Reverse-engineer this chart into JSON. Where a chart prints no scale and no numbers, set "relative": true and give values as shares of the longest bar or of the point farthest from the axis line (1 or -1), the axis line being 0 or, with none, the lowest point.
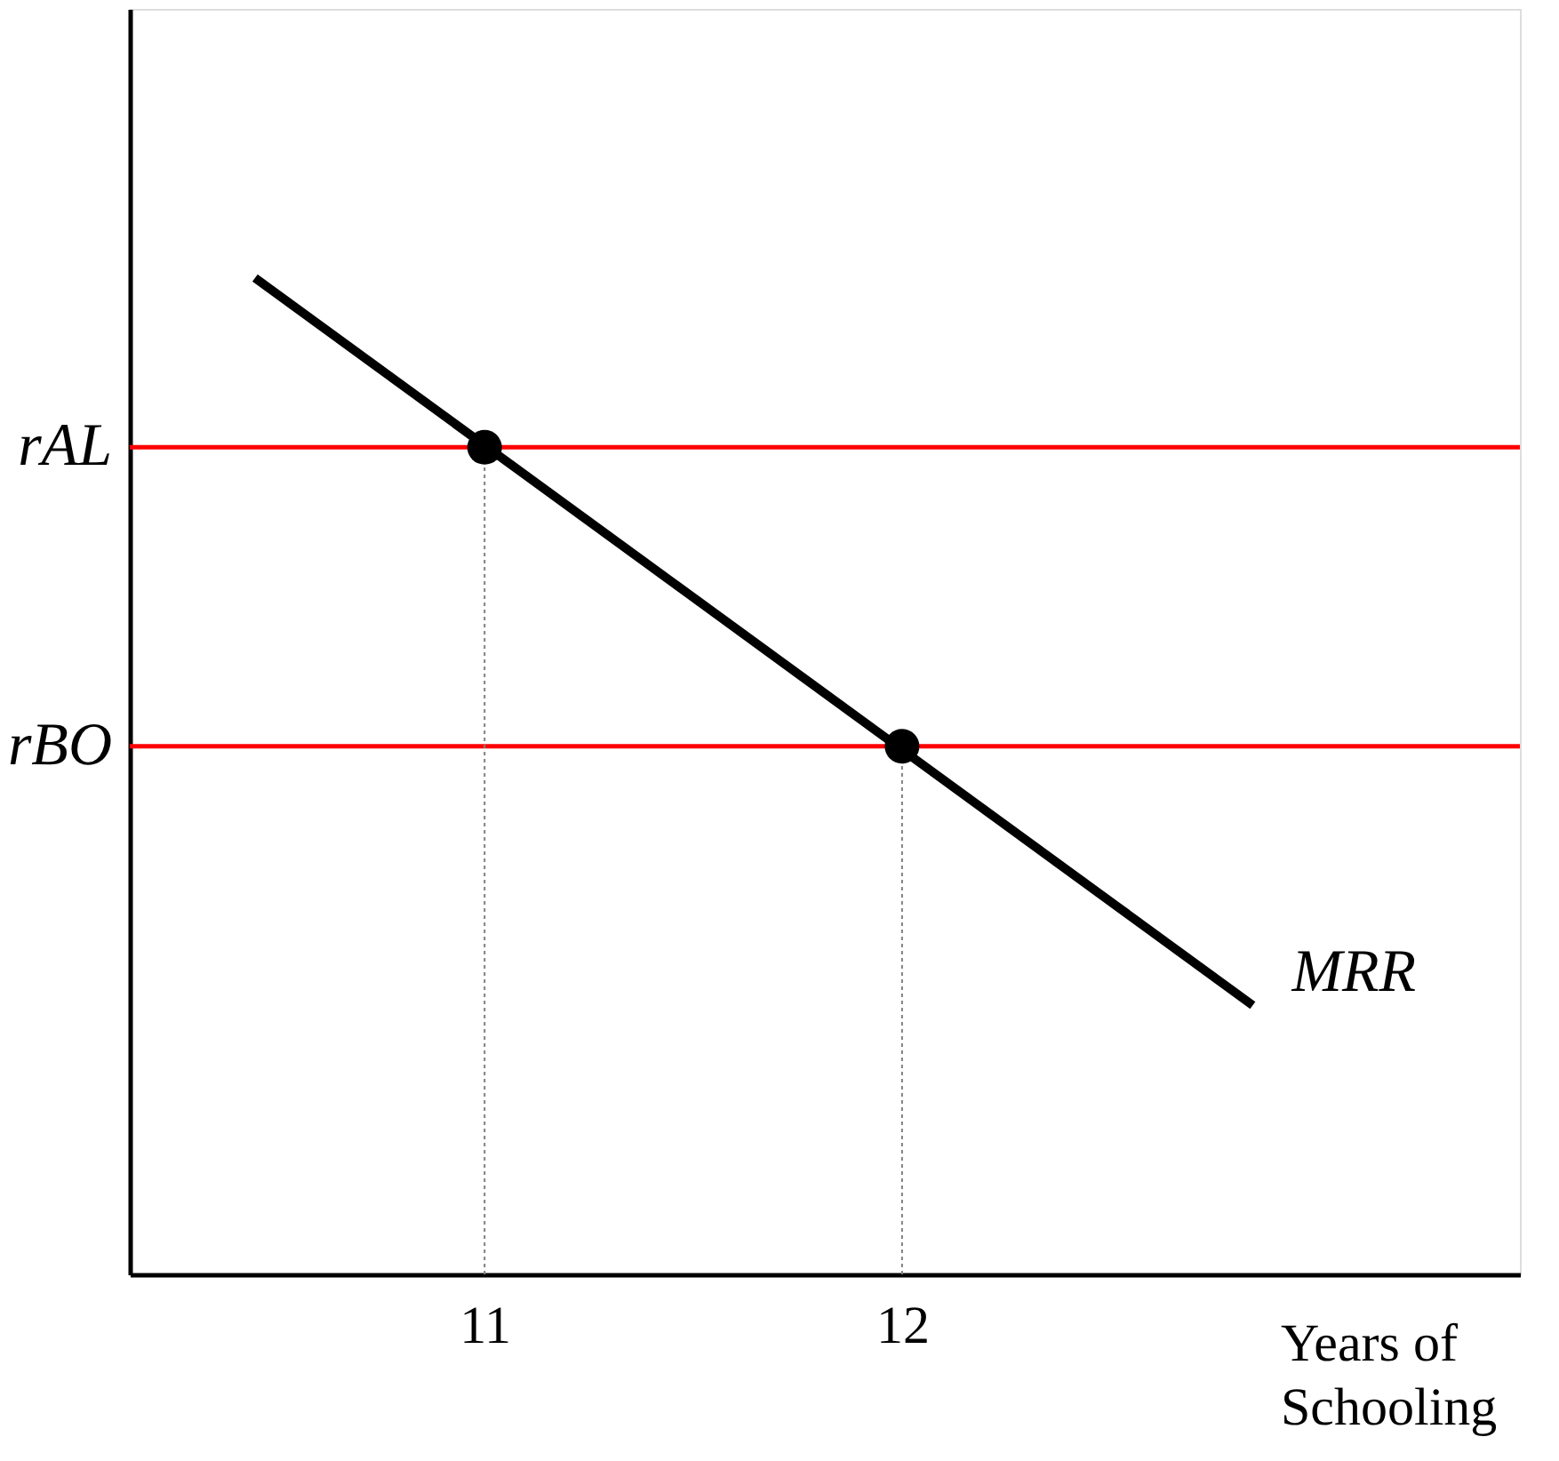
{
  "chart_data": {
    "type": "line",
    "relative": true,
    "xlabel": "Years of Schooling",
    "xlim": [
      10.15,
      13.48
    ],
    "xticks": [
      11,
      12
    ],
    "grid": false,
    "legend": false,
    "line_style": "solid",
    "series": [
      {
        "name": "MRR",
        "color": "#000000",
        "x": [
          10.45,
          12.84
        ],
        "values": [
          1,
          0.27
        ],
        "marker": "none"
      },
      {
        "type": "scatter",
        "color": "#000000",
        "x": [
          11,
          12
        ],
        "values": [
          0.83,
          0.53
        ],
        "marker": "circle"
      }
    ],
    "ref_lines": [
      {
        "axis": "y",
        "value": 0.83,
        "label": "rAL",
        "color": "#ff0000"
      },
      {
        "axis": "y",
        "value": 0.53,
        "label": "rBO",
        "color": "#ff0000"
      },
      {
        "axis": "x",
        "value": 11,
        "color": "#808080",
        "line_style": "dotted"
      },
      {
        "axis": "x",
        "value": 12,
        "color": "#808080",
        "line_style": "dotted"
      }
    ]
  }
}
